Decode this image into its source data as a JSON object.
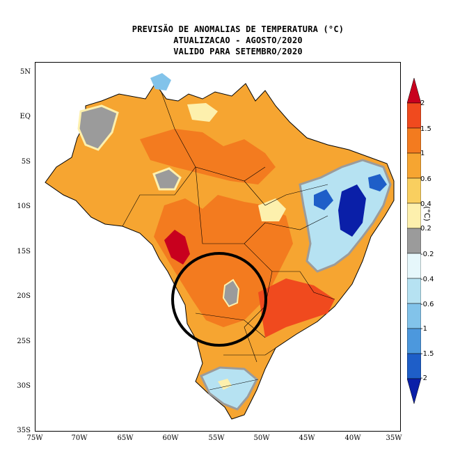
{
  "title": {
    "line1": "PREVISÃO DE ANOMALIAS DE TEMPERATURA (°C)",
    "line2": "ATUALIZACAO - AGOSTO/2020",
    "line3": "VALIDO PARA SETEMBRO/2020"
  },
  "axes": {
    "lat_labels": [
      "5N",
      "EQ",
      "5S",
      "10S",
      "15S",
      "20S",
      "25S",
      "30S",
      "35S"
    ],
    "lon_labels": [
      "75W",
      "70W",
      "65W",
      "60W",
      "55W",
      "50W",
      "45W",
      "40W",
      "35W"
    ]
  },
  "colorbar": {
    "unit": "(°C)",
    "tick_labels": [
      "2",
      "1.5",
      "1",
      "0.6",
      "0.4",
      "0.2",
      "-0.2",
      "-0.4",
      "-0.6",
      "-1",
      "-1.5",
      "-2"
    ],
    "colors": [
      "#c8001e",
      "#f04a1e",
      "#f37b1f",
      "#f6a531",
      "#f9cf5f",
      "#fdf0ad",
      "#9b9b9b",
      "#e6f7fb",
      "#b6e2f2",
      "#82c3ea",
      "#4c98dd",
      "#1e5ec8",
      "#0a1fa8"
    ]
  },
  "annotation": {
    "shape": "circle",
    "color": "#000000"
  }
}
